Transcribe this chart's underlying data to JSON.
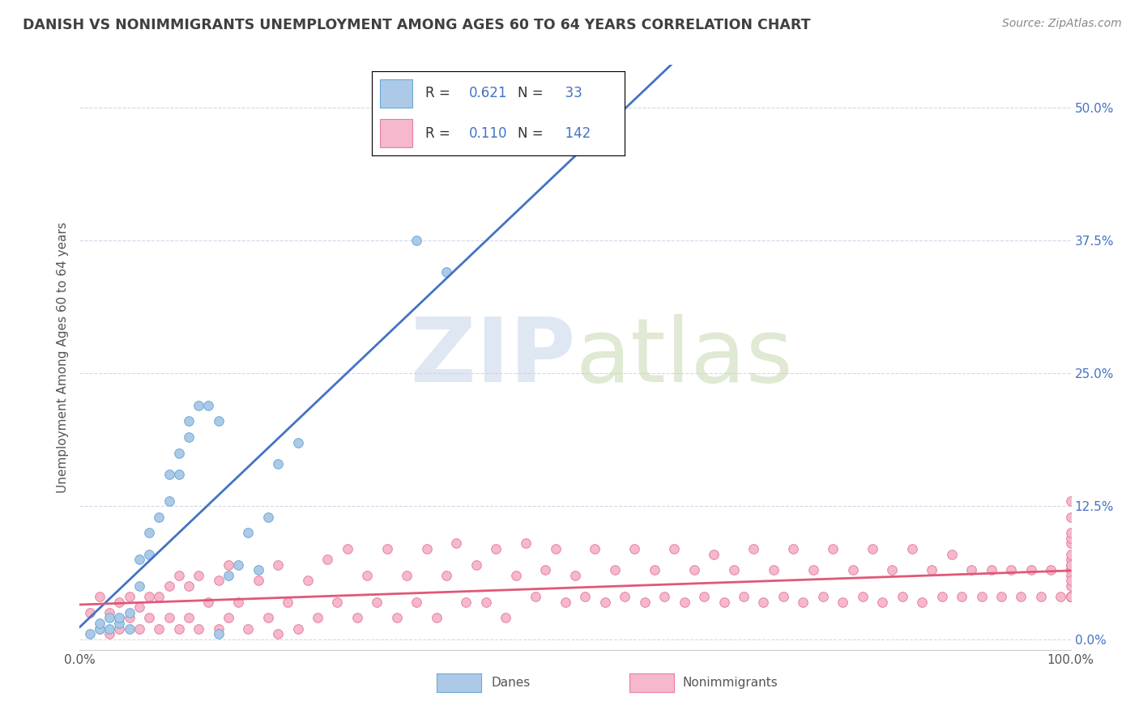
{
  "title": "DANISH VS NONIMMIGRANTS UNEMPLOYMENT AMONG AGES 60 TO 64 YEARS CORRELATION CHART",
  "source": "Source: ZipAtlas.com",
  "ylabel": "Unemployment Among Ages 60 to 64 years",
  "xlim": [
    0.0,
    1.0
  ],
  "ylim": [
    -0.01,
    0.54
  ],
  "yticks": [
    0.0,
    0.125,
    0.25,
    0.375,
    0.5
  ],
  "ytick_labels": [
    "0.0%",
    "12.5%",
    "25.0%",
    "37.5%",
    "50.0%"
  ],
  "danes_color": "#adc9e8",
  "danes_edge_color": "#6aaad4",
  "nonimm_color": "#f5b8cc",
  "nonimm_edge_color": "#e8809a",
  "danes_line_color": "#4472c4",
  "nonimm_line_color": "#e05878",
  "danes_R": 0.621,
  "danes_N": 33,
  "nonimm_R": 0.11,
  "nonimm_N": 142,
  "legend_color": "#4472c4",
  "background_color": "#ffffff",
  "grid_color": "#d0d8ea",
  "title_color": "#404040",
  "source_color": "#888888",
  "ylabel_color": "#555555",
  "xtick_color": "#555555",
  "danes_x": [
    0.01,
    0.02,
    0.02,
    0.03,
    0.03,
    0.04,
    0.04,
    0.05,
    0.05,
    0.06,
    0.06,
    0.07,
    0.07,
    0.08,
    0.09,
    0.09,
    0.1,
    0.1,
    0.11,
    0.11,
    0.12,
    0.13,
    0.14,
    0.14,
    0.15,
    0.16,
    0.17,
    0.18,
    0.19,
    0.2,
    0.22,
    0.34,
    0.37
  ],
  "danes_y": [
    0.005,
    0.01,
    0.015,
    0.01,
    0.02,
    0.015,
    0.02,
    0.01,
    0.025,
    0.05,
    0.075,
    0.08,
    0.1,
    0.115,
    0.13,
    0.155,
    0.155,
    0.175,
    0.19,
    0.205,
    0.22,
    0.22,
    0.205,
    0.005,
    0.06,
    0.07,
    0.1,
    0.065,
    0.115,
    0.165,
    0.185,
    0.375,
    0.345
  ],
  "nonimm_x": [
    0.01,
    0.02,
    0.02,
    0.03,
    0.03,
    0.04,
    0.04,
    0.05,
    0.05,
    0.06,
    0.06,
    0.07,
    0.07,
    0.08,
    0.08,
    0.09,
    0.09,
    0.1,
    0.1,
    0.11,
    0.11,
    0.12,
    0.12,
    0.13,
    0.14,
    0.14,
    0.15,
    0.15,
    0.16,
    0.17,
    0.18,
    0.19,
    0.2,
    0.2,
    0.21,
    0.22,
    0.23,
    0.24,
    0.25,
    0.26,
    0.27,
    0.28,
    0.29,
    0.3,
    0.31,
    0.32,
    0.33,
    0.34,
    0.35,
    0.36,
    0.37,
    0.38,
    0.39,
    0.4,
    0.41,
    0.42,
    0.43,
    0.44,
    0.45,
    0.46,
    0.47,
    0.48,
    0.49,
    0.5,
    0.51,
    0.52,
    0.53,
    0.54,
    0.55,
    0.56,
    0.57,
    0.58,
    0.59,
    0.6,
    0.61,
    0.62,
    0.63,
    0.64,
    0.65,
    0.66,
    0.67,
    0.68,
    0.69,
    0.7,
    0.71,
    0.72,
    0.73,
    0.74,
    0.75,
    0.76,
    0.77,
    0.78,
    0.79,
    0.8,
    0.81,
    0.82,
    0.83,
    0.84,
    0.85,
    0.86,
    0.87,
    0.88,
    0.89,
    0.9,
    0.91,
    0.92,
    0.93,
    0.94,
    0.95,
    0.96,
    0.97,
    0.98,
    0.99,
    1.0,
    1.0,
    1.0,
    1.0,
    1.0,
    1.0,
    1.0,
    1.0,
    1.0,
    1.0,
    1.0,
    1.0,
    1.0,
    1.0,
    1.0,
    1.0,
    1.0,
    1.0,
    1.0,
    1.0,
    1.0,
    1.0,
    1.0,
    1.0,
    1.0,
    1.0,
    1.0,
    1.0,
    1.0
  ],
  "nonimm_y": [
    0.025,
    0.01,
    0.04,
    0.005,
    0.025,
    0.01,
    0.035,
    0.02,
    0.04,
    0.01,
    0.03,
    0.02,
    0.04,
    0.01,
    0.04,
    0.02,
    0.05,
    0.01,
    0.06,
    0.02,
    0.05,
    0.01,
    0.06,
    0.035,
    0.01,
    0.055,
    0.02,
    0.07,
    0.035,
    0.01,
    0.055,
    0.02,
    0.005,
    0.07,
    0.035,
    0.01,
    0.055,
    0.02,
    0.075,
    0.035,
    0.085,
    0.02,
    0.06,
    0.035,
    0.085,
    0.02,
    0.06,
    0.035,
    0.085,
    0.02,
    0.06,
    0.09,
    0.035,
    0.07,
    0.035,
    0.085,
    0.02,
    0.06,
    0.09,
    0.04,
    0.065,
    0.085,
    0.035,
    0.06,
    0.04,
    0.085,
    0.035,
    0.065,
    0.04,
    0.085,
    0.035,
    0.065,
    0.04,
    0.085,
    0.035,
    0.065,
    0.04,
    0.08,
    0.035,
    0.065,
    0.04,
    0.085,
    0.035,
    0.065,
    0.04,
    0.085,
    0.035,
    0.065,
    0.04,
    0.085,
    0.035,
    0.065,
    0.04,
    0.085,
    0.035,
    0.065,
    0.04,
    0.085,
    0.035,
    0.065,
    0.04,
    0.08,
    0.04,
    0.065,
    0.04,
    0.065,
    0.04,
    0.065,
    0.04,
    0.065,
    0.04,
    0.065,
    0.04,
    0.065,
    0.04,
    0.065,
    0.04,
    0.065,
    0.04,
    0.065,
    0.04,
    0.065,
    0.04,
    0.065,
    0.04,
    0.065,
    0.04,
    0.065,
    0.04,
    0.05,
    0.06,
    0.07,
    0.075,
    0.09,
    0.04,
    0.055,
    0.07,
    0.08,
    0.095,
    0.1,
    0.115,
    0.13
  ]
}
